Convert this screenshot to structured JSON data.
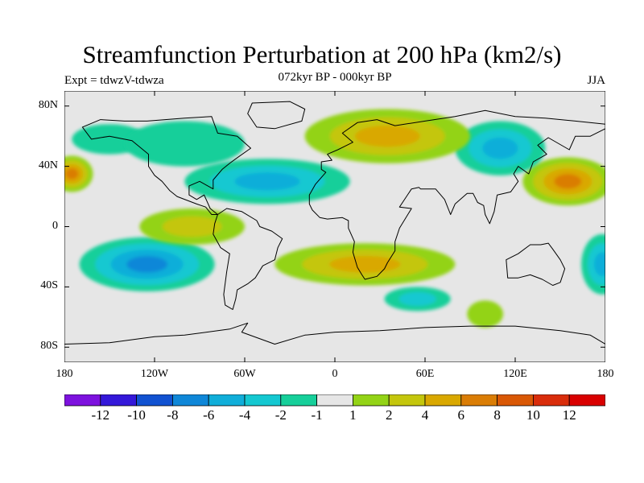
{
  "title": "Streamfunction Perturbation at 200 hPa (km2/s)",
  "experiment": "Expt = tdwzV-tdwza",
  "period": "072kyr BP - 000kyr BP",
  "season": "JJA",
  "lat_axis": {
    "ticks": [
      "80N",
      "40N",
      "0",
      "40S",
      "80S"
    ],
    "values": [
      80,
      40,
      0,
      -40,
      -80
    ],
    "range": [
      -90,
      90
    ]
  },
  "lon_axis": {
    "ticks": [
      "180",
      "120W",
      "60W",
      "0",
      "60E",
      "120E",
      "180"
    ],
    "values": [
      -180,
      -120,
      -60,
      0,
      60,
      120,
      180
    ],
    "range": [
      -180,
      180
    ]
  },
  "colorbar": {
    "levels": [
      "-12",
      "-10",
      "-8",
      "-6",
      "-4",
      "-2",
      "-1",
      "1",
      "2",
      "4",
      "6",
      "8",
      "10",
      "12"
    ],
    "colors": [
      "#7d12de",
      "#3418d9",
      "#1152d1",
      "#0f87d8",
      "#10aed9",
      "#14c8d1",
      "#16cf9a",
      "#e6e6e6",
      "#93d316",
      "#c4c60c",
      "#d9a800",
      "#da7d05",
      "#d95805",
      "#d92d0b",
      "#d90000"
    ]
  },
  "colors": {
    "background": "#e6e6e6",
    "coastline": "#000000"
  },
  "map": {
    "projection": "cylindrical-equidistant",
    "colors": {
      "background": "#e6e6e6",
      "neg1": "#16cf9a",
      "neg2": "#14c8d1",
      "neg4": "#10aed9",
      "neg6": "#0f87d8",
      "pos1": "#93d316",
      "pos2": "#c4c60c",
      "pos4": "#d9a800",
      "pos6": "#da7d05"
    },
    "anomalies": [
      {
        "name": "north-pacific-high",
        "lon": -175,
        "lat": 35,
        "rx": 14,
        "ry": 12,
        "levels": [
          "pos1",
          "pos2",
          "pos4",
          "pos6"
        ]
      },
      {
        "name": "n-pacific-green",
        "lon": -150,
        "lat": 58,
        "rx": 25,
        "ry": 10,
        "levels": [
          "neg1"
        ]
      },
      {
        "name": "east-asia-high",
        "lon": 155,
        "lat": 30,
        "rx": 30,
        "ry": 16,
        "levels": [
          "pos1",
          "pos2",
          "pos4",
          "pos6"
        ]
      },
      {
        "name": "siberia-low",
        "lon": 110,
        "lat": 52,
        "rx": 30,
        "ry": 18,
        "levels": [
          "neg1",
          "neg2",
          "neg4"
        ]
      },
      {
        "name": "eurasia-high",
        "lon": 35,
        "lat": 60,
        "rx": 55,
        "ry": 18,
        "levels": [
          "pos1",
          "pos2",
          "pos4"
        ]
      },
      {
        "name": "north-atlantic-low",
        "lon": -45,
        "lat": 30,
        "rx": 55,
        "ry": 15,
        "levels": [
          "neg1",
          "neg2",
          "neg4"
        ]
      },
      {
        "name": "canada-low",
        "lon": -100,
        "lat": 55,
        "rx": 40,
        "ry": 15,
        "levels": [
          "neg1"
        ]
      },
      {
        "name": "se-pacific-low",
        "lon": -125,
        "lat": -25,
        "rx": 45,
        "ry": 18,
        "levels": [
          "neg1",
          "neg2",
          "neg4",
          "neg6"
        ]
      },
      {
        "name": "s-atlantic-high",
        "lon": 20,
        "lat": -25,
        "rx": 60,
        "ry": 14,
        "levels": [
          "pos1",
          "pos2",
          "pos4"
        ]
      },
      {
        "name": "south-indian-low",
        "lon": 55,
        "lat": -48,
        "rx": 22,
        "ry": 8,
        "levels": [
          "neg1",
          "neg2"
        ]
      },
      {
        "name": "sw-pacific-low",
        "lon": 178,
        "lat": -25,
        "rx": 14,
        "ry": 20,
        "levels": [
          "neg1",
          "neg2",
          "neg4"
        ]
      },
      {
        "name": "south-ocean-high",
        "lon": 100,
        "lat": -58,
        "rx": 12,
        "ry": 9,
        "levels": [
          "pos1"
        ]
      },
      {
        "name": "s-american-high",
        "lon": -95,
        "lat": 0,
        "rx": 35,
        "ry": 12,
        "levels": [
          "pos1",
          "pos2"
        ]
      }
    ],
    "continents": [
      {
        "name": "north-america",
        "points": [
          [
            -168,
            66
          ],
          [
            -156,
            71
          ],
          [
            -140,
            70
          ],
          [
            -125,
            70
          ],
          [
            -100,
            72
          ],
          [
            -82,
            73
          ],
          [
            -78,
            62
          ],
          [
            -65,
            60
          ],
          [
            -56,
            52
          ],
          [
            -66,
            45
          ],
          [
            -70,
            42
          ],
          [
            -75,
            38
          ],
          [
            -81,
            31
          ],
          [
            -81,
            25
          ],
          [
            -90,
            30
          ],
          [
            -97,
            27
          ],
          [
            -97,
            21
          ],
          [
            -92,
            18
          ],
          [
            -87,
            21
          ],
          [
            -83,
            12
          ],
          [
            -78,
            8
          ],
          [
            -82,
            8
          ],
          [
            -86,
            13
          ],
          [
            -92,
            15
          ],
          [
            -105,
            20
          ],
          [
            -110,
            24
          ],
          [
            -115,
            30
          ],
          [
            -120,
            34
          ],
          [
            -124,
            40
          ],
          [
            -124,
            48
          ],
          [
            -135,
            57
          ],
          [
            -150,
            60
          ],
          [
            -162,
            58
          ],
          [
            -168,
            66
          ]
        ]
      },
      {
        "name": "south-america",
        "points": [
          [
            -78,
            8
          ],
          [
            -72,
            12
          ],
          [
            -62,
            10
          ],
          [
            -52,
            4
          ],
          [
            -50,
            0
          ],
          [
            -42,
            -3
          ],
          [
            -35,
            -8
          ],
          [
            -38,
            -14
          ],
          [
            -40,
            -22
          ],
          [
            -48,
            -26
          ],
          [
            -53,
            -34
          ],
          [
            -58,
            -38
          ],
          [
            -65,
            -42
          ],
          [
            -66,
            -48
          ],
          [
            -68,
            -55
          ],
          [
            -73,
            -52
          ],
          [
            -74,
            -45
          ],
          [
            -72,
            -30
          ],
          [
            -70,
            -18
          ],
          [
            -76,
            -14
          ],
          [
            -81,
            -5
          ],
          [
            -80,
            2
          ],
          [
            -78,
            8
          ]
        ]
      },
      {
        "name": "africa-eurasia",
        "points": [
          [
            -17,
            15
          ],
          [
            -17,
            21
          ],
          [
            -13,
            28
          ],
          [
            -6,
            36
          ],
          [
            -9,
            38
          ],
          [
            -9,
            43
          ],
          [
            -2,
            44
          ],
          [
            -5,
            48
          ],
          [
            2,
            51
          ],
          [
            8,
            54
          ],
          [
            12,
            56
          ],
          [
            5,
            62
          ],
          [
            15,
            69
          ],
          [
            28,
            71
          ],
          [
            40,
            67
          ],
          [
            60,
            70
          ],
          [
            80,
            73
          ],
          [
            100,
            77
          ],
          [
            120,
            73
          ],
          [
            140,
            72
          ],
          [
            160,
            70
          ],
          [
            180,
            68
          ],
          [
            180,
            65
          ],
          [
            170,
            60
          ],
          [
            160,
            60
          ],
          [
            156,
            51
          ],
          [
            142,
            59
          ],
          [
            135,
            54
          ],
          [
            141,
            48
          ],
          [
            132,
            43
          ],
          [
            129,
            35
          ],
          [
            122,
            40
          ],
          [
            119,
            35
          ],
          [
            122,
            30
          ],
          [
            117,
            23
          ],
          [
            108,
            21
          ],
          [
            106,
            10
          ],
          [
            103,
            2
          ],
          [
            100,
            8
          ],
          [
            99,
            14
          ],
          [
            95,
            16
          ],
          [
            92,
            22
          ],
          [
            88,
            22
          ],
          [
            80,
            15
          ],
          [
            77,
            8
          ],
          [
            73,
            18
          ],
          [
            67,
            25
          ],
          [
            57,
            25
          ],
          [
            56,
            26
          ],
          [
            51,
            25
          ],
          [
            43,
            13
          ],
          [
            51,
            12
          ],
          [
            43,
            -1
          ],
          [
            40,
            -10
          ],
          [
            40,
            -16
          ],
          [
            35,
            -24
          ],
          [
            33,
            -28
          ],
          [
            28,
            -33
          ],
          [
            20,
            -35
          ],
          [
            18,
            -32
          ],
          [
            15,
            -27
          ],
          [
            12,
            -17
          ],
          [
            13,
            -10
          ],
          [
            9,
            -1
          ],
          [
            9,
            4
          ],
          [
            5,
            6
          ],
          [
            -5,
            5
          ],
          [
            -10,
            6
          ],
          [
            -15,
            11
          ],
          [
            -17,
            15
          ]
        ]
      },
      {
        "name": "australia",
        "points": [
          [
            114,
            -22
          ],
          [
            122,
            -18
          ],
          [
            130,
            -12
          ],
          [
            137,
            -12
          ],
          [
            142,
            -11
          ],
          [
            145,
            -15
          ],
          [
            150,
            -22
          ],
          [
            153,
            -28
          ],
          [
            150,
            -37
          ],
          [
            145,
            -39
          ],
          [
            138,
            -35
          ],
          [
            130,
            -32
          ],
          [
            122,
            -34
          ],
          [
            115,
            -34
          ],
          [
            114,
            -22
          ]
        ]
      },
      {
        "name": "greenland",
        "points": [
          [
            -55,
            82
          ],
          [
            -30,
            83
          ],
          [
            -20,
            78
          ],
          [
            -22,
            70
          ],
          [
            -40,
            65
          ],
          [
            -52,
            66
          ],
          [
            -58,
            75
          ],
          [
            -55,
            82
          ]
        ]
      },
      {
        "name": "antarctica",
        "points": [
          [
            -180,
            -78
          ],
          [
            -150,
            -77
          ],
          [
            -120,
            -73
          ],
          [
            -100,
            -72
          ],
          [
            -70,
            -68
          ],
          [
            -58,
            -64
          ],
          [
            -62,
            -70
          ],
          [
            -40,
            -78
          ],
          [
            -20,
            -72
          ],
          [
            0,
            -70
          ],
          [
            30,
            -69
          ],
          [
            60,
            -67
          ],
          [
            90,
            -66
          ],
          [
            120,
            -66
          ],
          [
            150,
            -69
          ],
          [
            170,
            -72
          ],
          [
            180,
            -78
          ]
        ]
      }
    ]
  }
}
